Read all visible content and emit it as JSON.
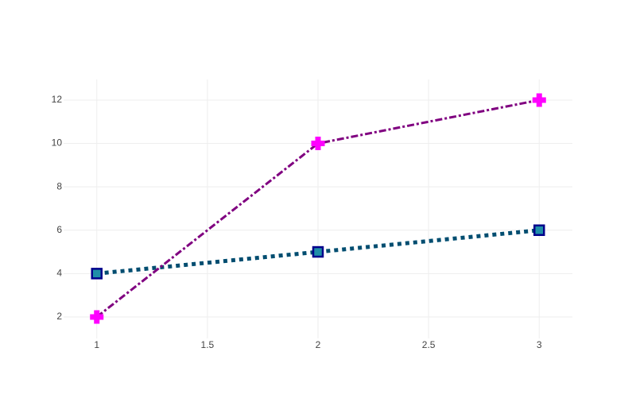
{
  "chart_data": {
    "type": "line",
    "x": [
      1,
      2,
      3
    ],
    "series": [
      {
        "values": [
          4,
          5,
          6
        ],
        "color": "#004d70",
        "dash": "dot",
        "line_width": 5,
        "marker": "square",
        "marker_color": "#1f8fa8",
        "marker_edge_color": "#00008b"
      },
      {
        "values": [
          2,
          10,
          12
        ],
        "color": "#800080",
        "dash": "dashdot",
        "line_width": 3,
        "marker": "cross",
        "marker_color": "#ff00ff",
        "marker_edge_color": "#ff00ff"
      }
    ],
    "xlim": [
      0.85,
      3.15
    ],
    "xticks": [
      1,
      1.5,
      2,
      2.5,
      3
    ],
    "ylim": [
      1.01,
      12.95
    ],
    "yticks": [
      2,
      4,
      6,
      8,
      10,
      12
    ],
    "grid": true
  }
}
